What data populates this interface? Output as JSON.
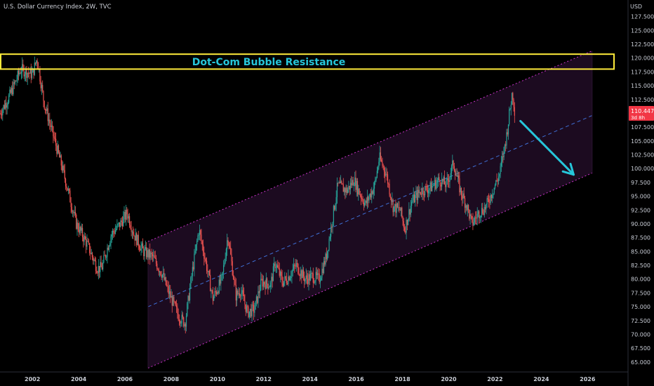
{
  "header": {
    "title": "U.S. Dollar Currency Index, 2W, TVC"
  },
  "axis": {
    "currency": "USD"
  },
  "price_badge": {
    "price": "110.447",
    "countdown": "3d 8h",
    "color": "#f23645"
  },
  "colors": {
    "up": "#26a69a",
    "down": "#ef5350",
    "channel": "#cc33cc",
    "midline": "#3f6fd6",
    "resistance": "#ffeb3b",
    "arrow": "#26c6da",
    "background": "#000000"
  },
  "annotation": {
    "resistance_label": "Dot-Com Bubble Resistance"
  },
  "chart_data": {
    "type": "candlestick",
    "title": "U.S. Dollar Currency Index, 2W, TVC",
    "x_ticks": [
      "2002",
      "2004",
      "2006",
      "2008",
      "2010",
      "2012",
      "2014",
      "2016",
      "2018",
      "2020",
      "2022",
      "2024",
      "2026"
    ],
    "y_ticks": [
      "65.000",
      "67.500",
      "70.000",
      "72.500",
      "75.000",
      "77.500",
      "80.000",
      "82.500",
      "85.000",
      "87.500",
      "90.000",
      "92.500",
      "95.000",
      "97.500",
      "100.000",
      "102.500",
      "105.000",
      "107.500",
      "110.000",
      "112.500",
      "115.000",
      "117.500",
      "120.000",
      "122.500",
      "125.000",
      "127.500"
    ],
    "ylim": [
      63.2,
      130.5
    ],
    "xlim": [
      2000.6,
      2027.6
    ],
    "approx_close_path": [
      [
        2000.6,
        110
      ],
      [
        2001.0,
        113
      ],
      [
        2001.5,
        118
      ],
      [
        2002.0,
        117
      ],
      [
        2002.2,
        120
      ],
      [
        2002.5,
        112
      ],
      [
        2002.9,
        106
      ],
      [
        2003.3,
        100
      ],
      [
        2003.6,
        95
      ],
      [
        2003.9,
        90
      ],
      [
        2004.1,
        88.5
      ],
      [
        2004.4,
        86
      ],
      [
        2004.8,
        82
      ],
      [
        2005.0,
        82
      ],
      [
        2005.4,
        88
      ],
      [
        2005.8,
        90
      ],
      [
        2006.1,
        92
      ],
      [
        2006.4,
        88
      ],
      [
        2006.8,
        85
      ],
      [
        2007.2,
        84
      ],
      [
        2007.6,
        81
      ],
      [
        2007.9,
        77.5
      ],
      [
        2008.3,
        73.5
      ],
      [
        2008.6,
        72
      ],
      [
        2008.9,
        81
      ],
      [
        2009.2,
        89
      ],
      [
        2009.5,
        83
      ],
      [
        2009.8,
        76.5
      ],
      [
        2010.2,
        80
      ],
      [
        2010.45,
        88
      ],
      [
        2010.8,
        77
      ],
      [
        2011.0,
        78
      ],
      [
        2011.3,
        74
      ],
      [
        2011.6,
        74.5
      ],
      [
        2011.9,
        79.5
      ],
      [
        2012.3,
        79
      ],
      [
        2012.5,
        83
      ],
      [
        2012.8,
        79.5
      ],
      [
        2013.0,
        80
      ],
      [
        2013.4,
        82.5
      ],
      [
        2013.8,
        80
      ],
      [
        2014.1,
        80.5
      ],
      [
        2014.4,
        80
      ],
      [
        2014.7,
        84
      ],
      [
        2014.9,
        89
      ],
      [
        2015.2,
        97
      ],
      [
        2015.6,
        96
      ],
      [
        2015.9,
        98
      ],
      [
        2016.1,
        96
      ],
      [
        2016.4,
        93.5
      ],
      [
        2016.8,
        97
      ],
      [
        2017.0,
        102
      ],
      [
        2017.3,
        99
      ],
      [
        2017.6,
        93
      ],
      [
        2017.9,
        92.5
      ],
      [
        2018.1,
        89
      ],
      [
        2018.4,
        94
      ],
      [
        2018.8,
        96
      ],
      [
        2019.2,
        96.5
      ],
      [
        2019.6,
        98
      ],
      [
        2019.9,
        97
      ],
      [
        2020.2,
        101
      ],
      [
        2020.5,
        96
      ],
      [
        2020.8,
        93
      ],
      [
        2021.0,
        90
      ],
      [
        2021.3,
        92
      ],
      [
        2021.6,
        93
      ],
      [
        2021.9,
        96
      ],
      [
        2022.2,
        99
      ],
      [
        2022.5,
        106
      ],
      [
        2022.75,
        114
      ],
      [
        2022.85,
        110.447
      ]
    ]
  },
  "channel_anchors": {
    "upper": [
      [
        2007.0,
        86.8
      ],
      [
        2026.2,
        121.3
      ]
    ],
    "middle": [
      [
        2007.0,
        75.0
      ],
      [
        2026.2,
        109.6
      ]
    ],
    "lower": [
      [
        2007.0,
        63.9
      ],
      [
        2026.2,
        99.2
      ]
    ]
  },
  "resistance_zone": {
    "from": 118.0,
    "to": 120.7
  },
  "forecast_arrow": {
    "from": [
      2023.1,
      108.6
    ],
    "to": [
      2025.4,
      98.9
    ]
  }
}
